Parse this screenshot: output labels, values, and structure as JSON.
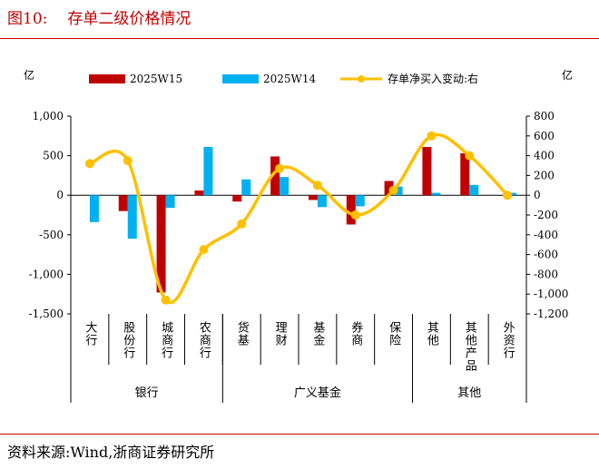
{
  "figure": {
    "label": "图10:",
    "title": "存单二级价格情况",
    "source": "资料来源:Wind,浙商证券研究所"
  },
  "chart_data": {
    "type": "bar",
    "unit_left": "亿",
    "unit_right": "亿",
    "categories": [
      "大行",
      "股份行",
      "城商行",
      "农商行",
      "货基",
      "理财",
      "基金",
      "券商",
      "保险",
      "其他",
      "其他产品",
      "外资行"
    ],
    "groups": [
      {
        "label": "银行",
        "from": 0,
        "to": 3
      },
      {
        "label": "广义基金",
        "from": 4,
        "to": 8
      },
      {
        "label": "其他",
        "from": 9,
        "to": 11
      }
    ],
    "series": [
      {
        "name": "2025W15",
        "type": "bar",
        "axis": "left",
        "color": "#c00000",
        "values": [
          0,
          -200,
          -1230,
          60,
          -80,
          490,
          -60,
          -370,
          180,
          610,
          530,
          0
        ]
      },
      {
        "name": "2025W14",
        "type": "bar",
        "axis": "left",
        "color": "#00b0f0",
        "values": [
          -340,
          -550,
          -160,
          610,
          200,
          230,
          -150,
          -140,
          110,
          30,
          130,
          30
        ]
      },
      {
        "name": "存单净买入变动:右",
        "type": "line",
        "axis": "right",
        "color": "#ffc000",
        "values": [
          320,
          350,
          -1060,
          -550,
          -290,
          270,
          100,
          -200,
          50,
          600,
          400,
          0
        ]
      }
    ],
    "ylim_left": [
      -1500,
      1000
    ],
    "yticks_left": [
      -1500,
      -1000,
      -500,
      0,
      500,
      1000
    ],
    "ytick_labels_left": [
      "-1,500",
      "-1,000",
      "-500",
      "0",
      "500",
      "1,000"
    ],
    "ylim_right": [
      -1200,
      800
    ],
    "yticks_right": [
      -1200,
      -1000,
      -800,
      -600,
      -400,
      -200,
      0,
      200,
      400,
      600,
      800
    ],
    "ytick_labels_right": [
      "-1,200",
      "-1,000",
      "-800",
      "-600",
      "-400",
      "-200",
      "0",
      "200",
      "400",
      "600",
      "800"
    ],
    "legend_position": "top",
    "grid": false
  }
}
